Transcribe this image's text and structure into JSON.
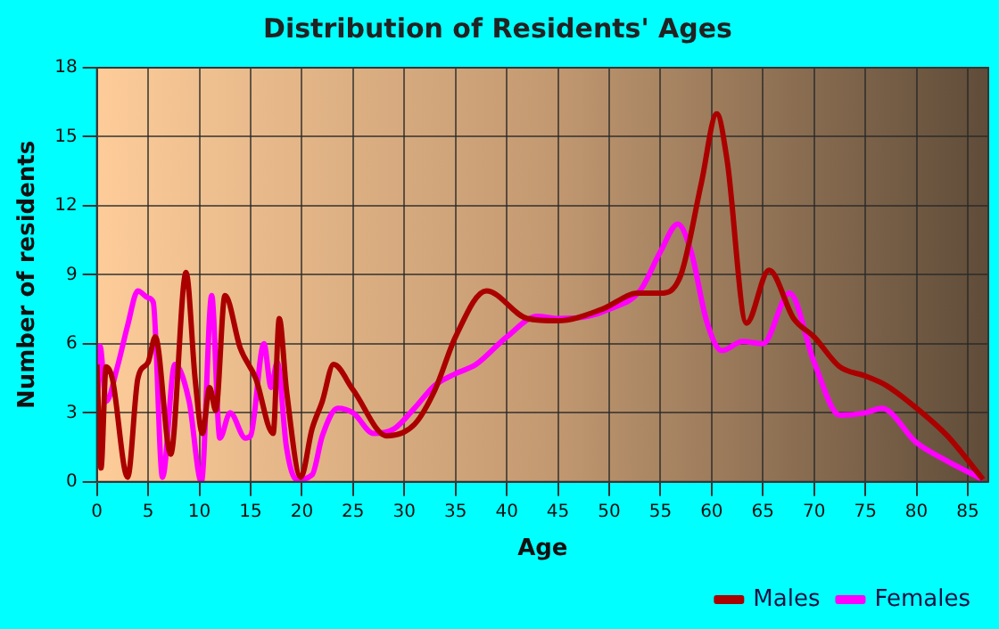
{
  "chart_data": {
    "type": "line",
    "title": "Distribution of Residents' Ages",
    "xlabel": "Age",
    "ylabel": "Number of residents",
    "xlim": [
      0,
      87
    ],
    "xticks": [
      0,
      5,
      10,
      15,
      20,
      25,
      30,
      35,
      40,
      45,
      50,
      55,
      60,
      65,
      70,
      75,
      80,
      85
    ],
    "ylim": [
      0,
      18
    ],
    "yticks": [
      0,
      3,
      6,
      9,
      12,
      15,
      18
    ],
    "grid": true,
    "legend": "bottom right",
    "marker": "none",
    "line_style": "solid",
    "series": [
      {
        "name": "Males",
        "color": "#aa0000",
        "x": [
          0,
          0.4,
          0.9,
          1.5,
          3,
          4,
          5,
          5.7,
          7.2,
          8.7,
          9.6,
          10.3,
          11,
          11.6,
          12.5,
          14,
          15.5,
          17.2,
          17.8,
          18.5,
          19.9,
          21,
          22,
          23.1,
          25,
          28.3,
          31,
          33,
          35,
          38,
          42,
          45,
          49.3,
          52.8,
          55,
          57,
          59,
          60.5,
          61.5,
          63.4,
          65.6,
          68,
          70,
          72.5,
          75,
          77,
          80,
          83,
          86.5
        ],
        "values": [
          5.1,
          0.6,
          5,
          4.5,
          0.2,
          4.5,
          5.2,
          6.3,
          1.2,
          9.1,
          4.4,
          2.1,
          4.1,
          3.1,
          8.1,
          5.8,
          4.5,
          2.1,
          7.1,
          4,
          0.2,
          2.3,
          3.5,
          5.1,
          4,
          2,
          2.5,
          4,
          6.3,
          8.3,
          7.1,
          7,
          7.5,
          8.2,
          8.2,
          9,
          13,
          16,
          14,
          6.9,
          9.2,
          7.1,
          6.3,
          5,
          4.6,
          4.2,
          3.2,
          2,
          0.1
        ]
      },
      {
        "name": "Females",
        "color": "#ff00ff",
        "x": [
          0,
          0.3,
          0.9,
          2,
          3,
          4,
          5,
          5.5,
          6.4,
          7.6,
          9,
          10.2,
          11.2,
          12,
          13,
          14.5,
          15,
          16.3,
          17,
          17.6,
          18.5,
          19.5,
          21,
          22,
          23.5,
          25,
          27,
          29,
          31,
          33,
          35,
          37,
          40,
          43,
          45,
          48,
          50,
          53,
          55,
          56.7,
          58,
          59.5,
          61,
          63,
          65,
          67.6,
          70,
          72.5,
          75,
          76.6,
          80,
          83,
          86.5
        ],
        "values": [
          3,
          5.9,
          3.5,
          5,
          6.8,
          8.3,
          8,
          7.8,
          0.2,
          5.1,
          3.5,
          0,
          8.1,
          1.9,
          3,
          1.9,
          2,
          6,
          4.1,
          5.2,
          1.5,
          0.1,
          0.3,
          2,
          3.2,
          3,
          2.1,
          2.3,
          3.2,
          4.2,
          4.7,
          5.1,
          6.3,
          7.2,
          7.1,
          7.2,
          7.5,
          8.3,
          10,
          11.2,
          10,
          7,
          5.7,
          6.1,
          6,
          8.2,
          5.2,
          2.9,
          3,
          3.2,
          1.7,
          0.9,
          0.1
        ]
      }
    ]
  }
}
